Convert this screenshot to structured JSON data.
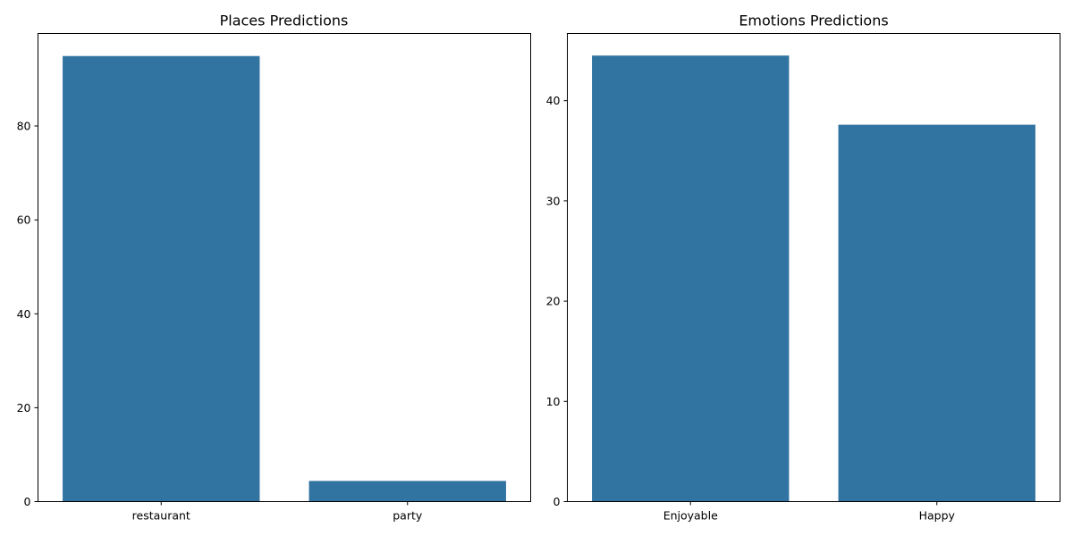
{
  "bar_color": "#3274a1",
  "chart_data": [
    {
      "type": "bar",
      "title": "Places Predictions",
      "xlabel": "",
      "ylabel": "",
      "categories": [
        "restaurant",
        "party"
      ],
      "values": [
        94.9,
        4.4
      ],
      "ylim": [
        0,
        99.7
      ],
      "yticks": [
        0,
        20,
        40,
        60,
        80
      ],
      "grid": false
    },
    {
      "type": "bar",
      "title": "Emotions Predictions",
      "xlabel": "",
      "ylabel": "",
      "categories": [
        "Enjoyable",
        "Happy"
      ],
      "values": [
        44.5,
        37.6
      ],
      "ylim": [
        0,
        46.7
      ],
      "yticks": [
        0,
        10,
        20,
        30,
        40
      ],
      "grid": false
    }
  ]
}
